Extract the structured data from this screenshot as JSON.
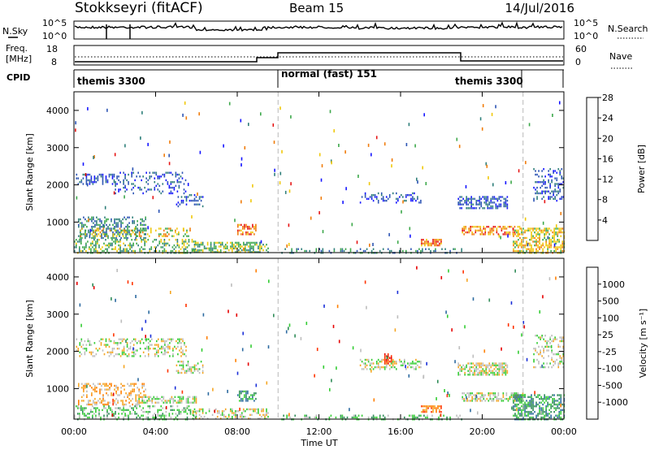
{
  "header": {
    "station": "Stokkseyri (fitACF)",
    "beam": "Beam 15",
    "date": "14/Jul/2016"
  },
  "strip": {
    "nsky_label": "N.Sky",
    "nsky_ticks": [
      "10^5",
      "10^0"
    ],
    "nsearch_label": "N.Search",
    "nsearch_ticks": [
      "10^5",
      "10^0"
    ],
    "freq_label_1": "Freq.",
    "freq_label_2": "[MHz]",
    "freq_ticks": [
      "18",
      "8"
    ],
    "nave_label": "Nave",
    "nave_ticks": [
      "60",
      "0"
    ],
    "cpid_label": "CPID",
    "cpid_segments": [
      {
        "label": "themis 3300",
        "start_h": 0,
        "end_h": 10
      },
      {
        "label": "normal (fast) 151",
        "start_h": 10,
        "end_h": 19
      },
      {
        "label": "themis 3300",
        "start_h": 19,
        "end_h": 22
      }
    ]
  },
  "chart_data": [
    {
      "type": "heatmap",
      "name": "power",
      "ylabel": "Slant Range [km]",
      "ylim": [
        180,
        4500
      ],
      "yticks": [
        1000,
        2000,
        3000,
        4000
      ],
      "xlim": [
        0,
        24
      ],
      "xticks": [
        "00:00",
        "04:00",
        "08:00",
        "12:00",
        "16:00",
        "20:00",
        "00:00"
      ],
      "colorbar": {
        "label": "Power [dB]",
        "ticks": [
          "4",
          "8",
          "12",
          "16",
          "20",
          "24",
          "28"
        ],
        "colors": [
          "#1414ff",
          "#2c54b4",
          "#2f7f7a",
          "#3ca84a",
          "#f0c80a",
          "#f07c0a",
          "#e61414"
        ]
      },
      "regions": [
        {
          "x0": 0.1,
          "x1": 2.0,
          "y0": 2050,
          "y1": 2350,
          "level": 1,
          "density": 0.5
        },
        {
          "x0": 2.0,
          "x1": 5.5,
          "y0": 1800,
          "y1": 2400,
          "level": 1,
          "density": 0.25
        },
        {
          "x0": 5.0,
          "x1": 6.3,
          "y0": 1450,
          "y1": 1800,
          "level": 1,
          "density": 0.4
        },
        {
          "x0": 0.2,
          "x1": 3.5,
          "y0": 600,
          "y1": 1200,
          "level": 2,
          "density": 0.45
        },
        {
          "x0": 0.3,
          "x1": 5.8,
          "y0": 650,
          "y1": 900,
          "level": 4,
          "density": 0.3
        },
        {
          "x0": 0.0,
          "x1": 6.0,
          "y0": 200,
          "y1": 600,
          "level": 3,
          "density": 0.4
        },
        {
          "x0": 5.8,
          "x1": 9.5,
          "y0": 220,
          "y1": 500,
          "level": 3,
          "density": 0.55
        },
        {
          "x0": 8.0,
          "x1": 8.9,
          "y0": 700,
          "y1": 1000,
          "level": 5,
          "density": 0.6
        },
        {
          "x0": 10.0,
          "x1": 19.0,
          "y0": 200,
          "y1": 320,
          "level": 2,
          "density": 0.3
        },
        {
          "x0": 14.0,
          "x1": 17.0,
          "y0": 1550,
          "y1": 1850,
          "level": 1,
          "density": 0.3
        },
        {
          "x0": 17.0,
          "x1": 18.0,
          "y0": 400,
          "y1": 600,
          "level": 5,
          "density": 0.7
        },
        {
          "x0": 18.8,
          "x1": 21.2,
          "y0": 1400,
          "y1": 1750,
          "level": 1,
          "density": 0.6
        },
        {
          "x0": 19.0,
          "x1": 22.0,
          "y0": 700,
          "y1": 950,
          "level": 5,
          "density": 0.55
        },
        {
          "x0": 21.5,
          "x1": 24.0,
          "y0": 200,
          "y1": 900,
          "level": 4,
          "density": 0.55
        },
        {
          "x0": 22.5,
          "x1": 24.0,
          "y0": 1600,
          "y1": 2500,
          "level": 1,
          "density": 0.3
        }
      ]
    },
    {
      "type": "heatmap",
      "name": "velocity",
      "ylabel": "Slant Range [km]",
      "ylim": [
        180,
        4500
      ],
      "yticks": [
        1000,
        2000,
        3000,
        4000
      ],
      "xlim": [
        0,
        24
      ],
      "xticks": [
        "00:00",
        "04:00",
        "08:00",
        "12:00",
        "16:00",
        "20:00",
        "00:00"
      ],
      "xlabel": "Time UT",
      "colorbar": {
        "label": "Velocity [m s⁻¹]",
        "ticks": [
          "1000",
          "500",
          "100",
          "25",
          "-25",
          "-100",
          "-500",
          "-1000"
        ],
        "colors": [
          "#1a2fd8",
          "#2c6aa0",
          "#2e8b57",
          "#33cc33",
          "#bdbdbd",
          "#f5a623",
          "#ff7f00",
          "#ff3300",
          "#e60000"
        ]
      },
      "regions": [
        {
          "x0": 0.1,
          "x1": 5.5,
          "y0": 1900,
          "y1": 2400,
          "level": 4,
          "density": 0.35
        },
        {
          "x0": 5.0,
          "x1": 6.3,
          "y0": 1450,
          "y1": 1800,
          "level": 4,
          "density": 0.4
        },
        {
          "x0": 0.2,
          "x1": 3.5,
          "y0": 600,
          "y1": 1200,
          "level": 5,
          "density": 0.35
        },
        {
          "x0": 3.0,
          "x1": 6.0,
          "y0": 650,
          "y1": 850,
          "level": 4,
          "density": 0.6
        },
        {
          "x0": 0.0,
          "x1": 6.0,
          "y0": 200,
          "y1": 600,
          "level": 3,
          "density": 0.35
        },
        {
          "x0": 5.8,
          "x1": 9.5,
          "y0": 220,
          "y1": 500,
          "level": 4,
          "density": 0.4
        },
        {
          "x0": 8.0,
          "x1": 8.9,
          "y0": 700,
          "y1": 1000,
          "level": 2,
          "density": 0.5
        },
        {
          "x0": 10.0,
          "x1": 19.0,
          "y0": 200,
          "y1": 320,
          "level": 3,
          "density": 0.3
        },
        {
          "x0": 14.0,
          "x1": 17.0,
          "y0": 1550,
          "y1": 1850,
          "level": 4,
          "density": 0.35
        },
        {
          "x0": 15.2,
          "x1": 15.6,
          "y0": 1700,
          "y1": 2000,
          "level": 7,
          "density": 0.7
        },
        {
          "x0": 17.0,
          "x1": 18.0,
          "y0": 400,
          "y1": 600,
          "level": 6,
          "density": 0.7
        },
        {
          "x0": 18.8,
          "x1": 21.2,
          "y0": 1400,
          "y1": 1750,
          "level": 4,
          "density": 0.7
        },
        {
          "x0": 19.0,
          "x1": 22.0,
          "y0": 700,
          "y1": 950,
          "level": 4,
          "density": 0.6
        },
        {
          "x0": 21.5,
          "x1": 24.0,
          "y0": 200,
          "y1": 900,
          "level": 2,
          "density": 0.55
        },
        {
          "x0": 22.5,
          "x1": 24.0,
          "y0": 1600,
          "y1": 2500,
          "level": 4,
          "density": 0.3
        }
      ]
    }
  ]
}
